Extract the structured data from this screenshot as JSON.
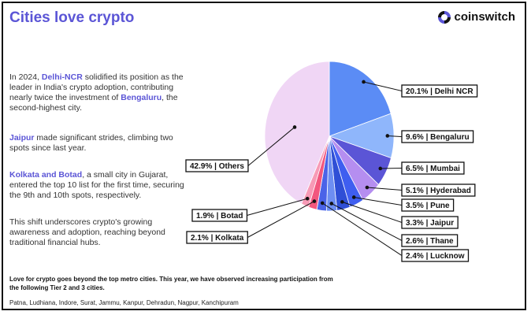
{
  "title": "Cities love crypto",
  "brand": "coinswitch",
  "paragraphs": {
    "p1": {
      "pre": "In 2024, ",
      "hl1": "Delhi-NCR",
      "mid": " solidified its position as the leader in India's crypto adoption, contributing nearly twice the investment of ",
      "hl2": "Bengaluru",
      "post": ", the second-highest city."
    },
    "p2": {
      "hl1": "Jaipur",
      "post": " made significant strides, climbing two spots since last year."
    },
    "p3": {
      "hl1": "Kolkata and Botad",
      "post": ", a small city in Gujarat, entered the top 10 list for the first time, securing the 9th and 10th spots, respectively."
    },
    "p4": "This shift underscores crypto's growing awareness and adoption, reaching beyond traditional financial hubs."
  },
  "footer_bold": "Love for crypto goes beyond the top metro cities. This year, we have observed increasing participation from the following Tier 2 and 3 cities.",
  "footer_cities": "Patna, Ludhiana, Indore, Surat, Jammu, Kanpur, Dehradun, Nagpur, Kanchipuram",
  "chart_data": {
    "type": "pie",
    "categories": [
      "Delhi NCR",
      "Bengaluru",
      "Mumbai",
      "Hyderabad",
      "Pune",
      "Jaipur",
      "Thane",
      "Lucknow",
      "Kolkata",
      "Botad",
      "Others"
    ],
    "values": [
      20.1,
      9.6,
      6.5,
      5.1,
      3.5,
      3.3,
      2.6,
      2.4,
      2.1,
      1.9,
      42.9
    ],
    "labels": [
      "20.1% | Delhi NCR",
      "9.6% | Bengaluru",
      "6.5% | Mumbai",
      "5.1% | Hyderabad",
      "3.5% | Pune",
      "3.3% | Jaipur",
      "2.6% | Thane",
      "2.4% | Lucknow",
      "2.1% | Kolkata",
      "1.9% | Botad",
      "42.9% | Others"
    ],
    "colors": [
      "#5b8cf5",
      "#8fb6fb",
      "#5b55d6",
      "#b58ef0",
      "#3f5ef0",
      "#2f4fd6",
      "#6d8ef2",
      "#4a63e8",
      "#f2577e",
      "#f79ab6",
      "#f0d6f5"
    ]
  }
}
